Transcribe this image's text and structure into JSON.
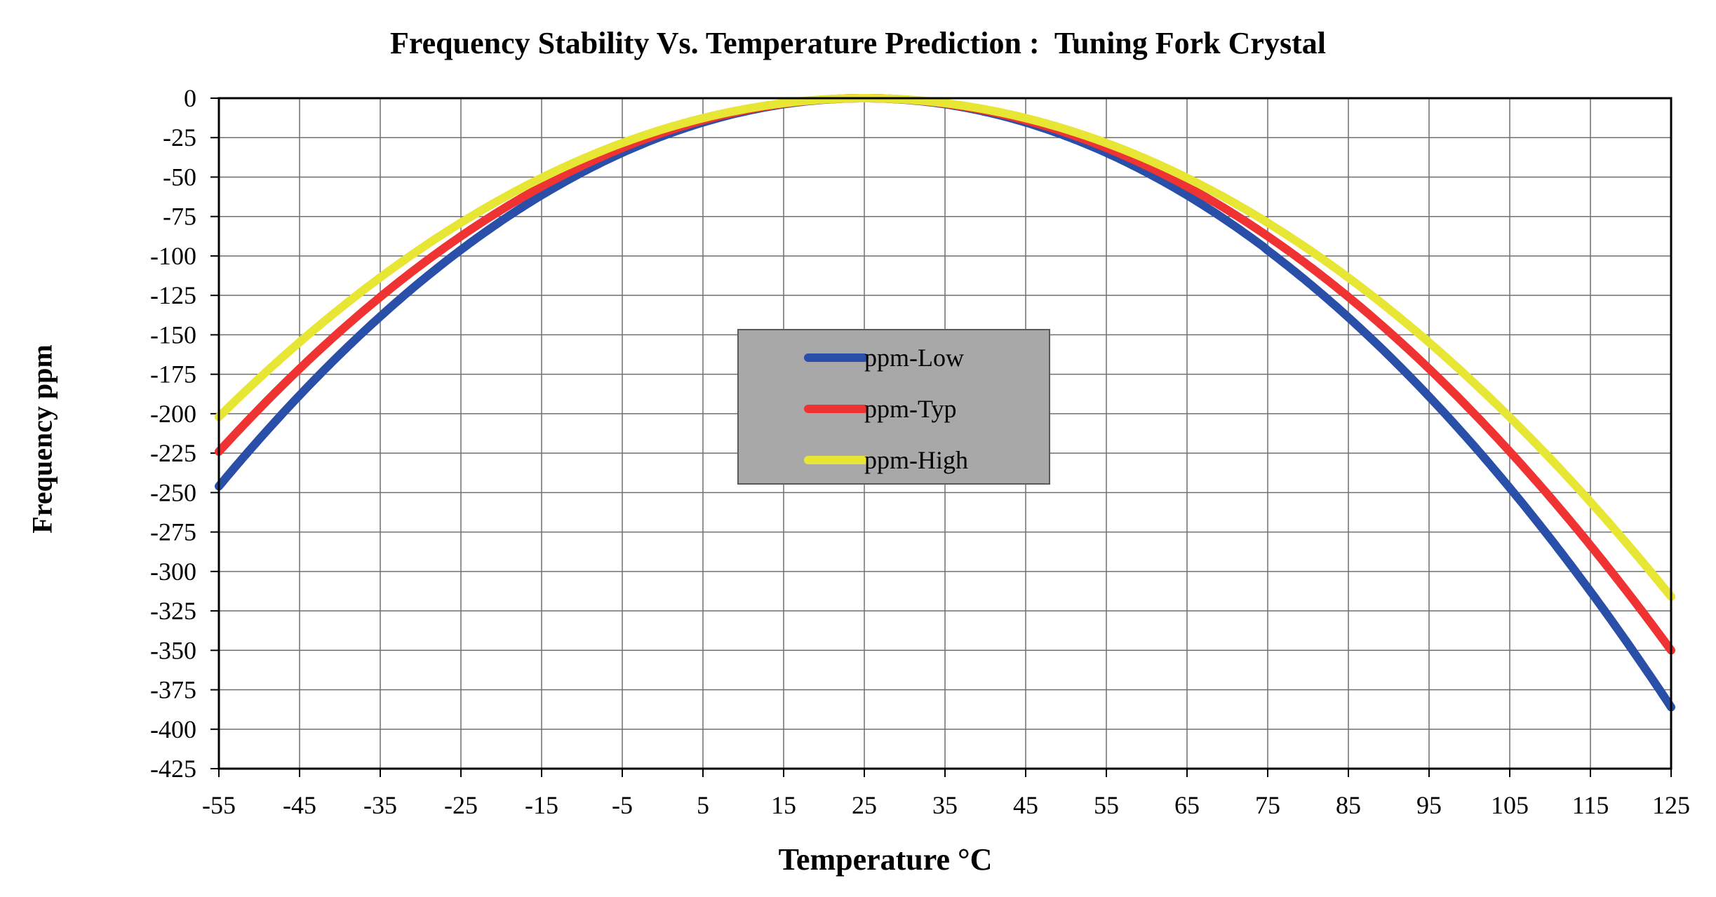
{
  "chart_data": {
    "type": "line",
    "title": "Frequency Stability Vs. Temperature Prediction :  Tuning Fork Crystal",
    "xlabel": "Temperature °C",
    "ylabel": "Frequency ppm",
    "xlim": [
      -55,
      125
    ],
    "ylim": [
      -425,
      0
    ],
    "xticks": [
      -55,
      -45,
      -35,
      -25,
      -15,
      -5,
      5,
      15,
      25,
      35,
      45,
      55,
      65,
      75,
      85,
      95,
      105,
      115,
      125
    ],
    "yticks": [
      0,
      -25,
      -50,
      -75,
      -100,
      -125,
      -150,
      -175,
      -200,
      -225,
      -250,
      -275,
      -300,
      -325,
      -350,
      -375,
      -400,
      -425
    ],
    "xtick_labels": [
      "-55",
      "-45",
      "-35",
      "-25",
      "-15",
      "-5",
      "5",
      "15",
      "25",
      "35",
      "45",
      "55",
      "65",
      "75",
      "85",
      "95",
      "105",
      "115",
      "125"
    ],
    "ytick_labels": [
      "0",
      "-25",
      "-50",
      "-75",
      "-100",
      "-125",
      "-150",
      "-175",
      "-200",
      "-225",
      "-250",
      "-275",
      "-300",
      "-325",
      "-350",
      "-375",
      "-400",
      "-425"
    ],
    "grid": true,
    "legend_position": "center",
    "turnover_temperature": 25,
    "series": [
      {
        "name": "ppm-Low",
        "color": "#2a4fa8",
        "x": [
          -55,
          -45,
          -35,
          -25,
          -15,
          -5,
          5,
          15,
          25,
          35,
          45,
          55,
          65,
          75,
          85,
          95,
          105,
          115,
          125
        ],
        "values": [
          -246,
          -189,
          -139,
          -97,
          -62,
          -35,
          -16,
          -4,
          0,
          -4,
          -16,
          -35,
          -62,
          -97,
          -139,
          -189,
          -246,
          -312,
          -386
        ]
      },
      {
        "name": "ppm-Typ",
        "color": "#ef3333",
        "x": [
          -55,
          -45,
          -35,
          -25,
          -15,
          -5,
          5,
          15,
          25,
          35,
          45,
          55,
          65,
          75,
          85,
          95,
          105,
          115,
          125
        ],
        "values": [
          -224,
          -171,
          -126,
          -88,
          -56,
          -32,
          -14,
          -3.5,
          0,
          -3.5,
          -14,
          -32,
          -56,
          -88,
          -126,
          -171,
          -224,
          -283,
          -350
        ]
      },
      {
        "name": "ppm-High",
        "color": "#e8e635",
        "x": [
          -55,
          -45,
          -35,
          -25,
          -15,
          -5,
          5,
          15,
          25,
          35,
          45,
          55,
          65,
          75,
          85,
          95,
          105,
          115,
          125
        ],
        "values": [
          -202,
          -155,
          -114,
          -79,
          -51,
          -28,
          -13,
          -3.2,
          0,
          -3.2,
          -13,
          -28,
          -51,
          -79,
          -114,
          -155,
          -202,
          -256,
          -316
        ]
      }
    ]
  }
}
